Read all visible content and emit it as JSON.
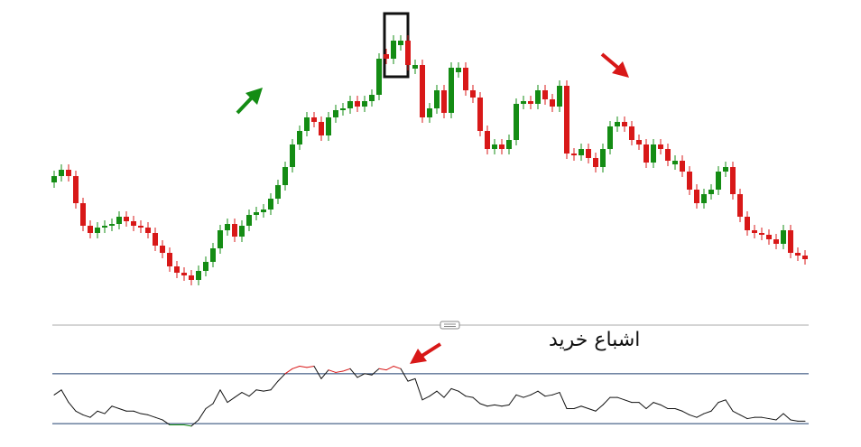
{
  "chart_data": [
    {
      "type": "candlestick",
      "up_color": "#148c14",
      "down_color": "#d81818",
      "ylim": [
        160,
        500
      ],
      "open": [
        298,
        305,
        312,
        305,
        275,
        250,
        242,
        248,
        250,
        252,
        260,
        255,
        250,
        248,
        242,
        228,
        220,
        205,
        198,
        195,
        190,
        200,
        210,
        225,
        245,
        252,
        238,
        250,
        262,
        265,
        268,
        280,
        295,
        315,
        340,
        355,
        370,
        365,
        350,
        370,
        378,
        380,
        388,
        382,
        388,
        395,
        440,
        435,
        450,
        455,
        424,
        428,
        370,
        380,
        400,
        375,
        420,
        425,
        400,
        392,
        355,
        335,
        340,
        335,
        345,
        385,
        388,
        385,
        400,
        390,
        382,
        405,
        330,
        328,
        335,
        325,
        315,
        335,
        360,
        365,
        360,
        345,
        340,
        320,
        340,
        335,
        318,
        322,
        310,
        290,
        275,
        285,
        290,
        310,
        315,
        285,
        260,
        245,
        242,
        240,
        235,
        230,
        245,
        220,
        217
      ],
      "high": [
        311,
        318,
        318,
        311,
        281,
        256,
        254,
        256,
        258,
        266,
        266,
        261,
        256,
        254,
        248,
        234,
        226,
        211,
        204,
        201,
        206,
        216,
        231,
        251,
        258,
        258,
        256,
        268,
        271,
        274,
        286,
        301,
        321,
        346,
        361,
        376,
        376,
        371,
        376,
        384,
        386,
        394,
        394,
        394,
        401,
        441,
        446,
        461,
        461,
        461,
        434,
        434,
        386,
        406,
        406,
        431,
        431,
        431,
        406,
        398,
        361,
        346,
        346,
        351,
        391,
        394,
        394,
        406,
        406,
        396,
        411,
        411,
        336,
        341,
        341,
        331,
        341,
        366,
        371,
        371,
        366,
        351,
        346,
        346,
        346,
        341,
        328,
        328,
        316,
        296,
        291,
        296,
        316,
        321,
        321,
        291,
        266,
        251,
        248,
        246,
        241,
        251,
        251,
        226,
        223
      ],
      "low": [
        292,
        299,
        299,
        269,
        244,
        236,
        236,
        242,
        244,
        246,
        249,
        244,
        242,
        236,
        222,
        214,
        199,
        192,
        189,
        184,
        184,
        194,
        204,
        219,
        239,
        232,
        232,
        244,
        256,
        259,
        262,
        274,
        289,
        309,
        334,
        349,
        359,
        344,
        344,
        364,
        372,
        374,
        376,
        376,
        382,
        389,
        429,
        429,
        444,
        422,
        418,
        364,
        364,
        374,
        369,
        369,
        414,
        394,
        386,
        349,
        329,
        329,
        329,
        329,
        339,
        379,
        379,
        379,
        384,
        376,
        376,
        324,
        322,
        322,
        319,
        309,
        309,
        329,
        354,
        354,
        339,
        334,
        314,
        314,
        329,
        316,
        312,
        304,
        284,
        269,
        269,
        279,
        284,
        304,
        279,
        254,
        239,
        236,
        234,
        229,
        224,
        224,
        214,
        211,
        207
      ],
      "close": [
        305,
        312,
        305,
        275,
        250,
        242,
        248,
        250,
        252,
        260,
        255,
        250,
        248,
        242,
        228,
        220,
        205,
        198,
        195,
        190,
        200,
        210,
        225,
        245,
        252,
        238,
        250,
        262,
        265,
        268,
        280,
        295,
        315,
        340,
        355,
        370,
        365,
        350,
        370,
        378,
        380,
        388,
        382,
        388,
        395,
        435,
        435,
        455,
        455,
        428,
        428,
        370,
        380,
        400,
        375,
        425,
        425,
        400,
        392,
        355,
        335,
        340,
        335,
        345,
        385,
        388,
        385,
        400,
        390,
        382,
        405,
        330,
        328,
        335,
        325,
        315,
        335,
        360,
        365,
        360,
        345,
        340,
        320,
        340,
        335,
        322,
        322,
        310,
        290,
        275,
        285,
        290,
        310,
        315,
        285,
        260,
        245,
        242,
        240,
        235,
        230,
        245,
        220,
        217,
        213
      ]
    },
    {
      "type": "line",
      "color": "#111111",
      "overbought_color": "#d81818",
      "oversold_color": "#148c14",
      "level_color": "#1f3f6e",
      "ylim": [
        25,
        80
      ],
      "levels": [
        70,
        30
      ],
      "annotation": "اشباع خرید",
      "values": [
        53,
        57,
        47,
        40,
        37,
        35,
        40,
        38,
        44,
        42,
        40,
        40,
        38,
        37,
        35,
        33,
        29,
        29,
        29,
        28,
        33,
        42,
        46,
        57,
        47,
        51,
        55,
        52,
        57,
        56,
        57,
        64,
        70,
        74,
        76,
        75,
        76,
        66,
        73,
        71,
        72,
        74,
        67,
        70,
        69,
        74,
        73,
        76,
        74,
        64,
        66,
        49,
        52,
        56,
        51,
        58,
        56,
        52,
        51,
        46,
        44,
        45,
        44,
        45,
        53,
        51,
        53,
        56,
        52,
        53,
        55,
        42,
        42,
        44,
        42,
        40,
        45,
        51,
        51,
        49,
        47,
        47,
        42,
        47,
        45,
        42,
        42,
        40,
        37,
        35,
        38,
        40,
        47,
        49,
        40,
        37,
        34,
        35,
        35,
        34,
        33,
        38,
        33,
        32,
        32
      ]
    }
  ]
}
